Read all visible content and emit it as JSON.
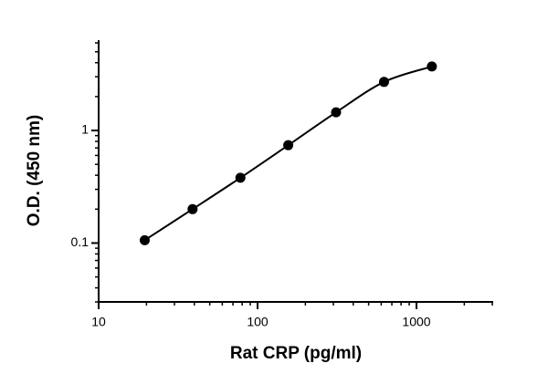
{
  "chart_data": {
    "type": "scatter",
    "x_label": "Rat CRP (pg/ml)",
    "y_label": "O.D. (450 nm)",
    "x": [
      19.5,
      39,
      78,
      156,
      312,
      625,
      1250
    ],
    "series": [
      {
        "color": "#000000",
        "values": [
          0.106,
          0.2,
          0.38,
          0.74,
          1.45,
          2.7,
          3.7
        ]
      }
    ],
    "xlim": [
      10,
      3000
    ],
    "ylim": [
      0.03,
      6
    ],
    "xticks": [
      10,
      100,
      1000
    ],
    "yticks": [
      0.1,
      1
    ],
    "log_x": true,
    "log_y": true,
    "fit_curve": true
  }
}
